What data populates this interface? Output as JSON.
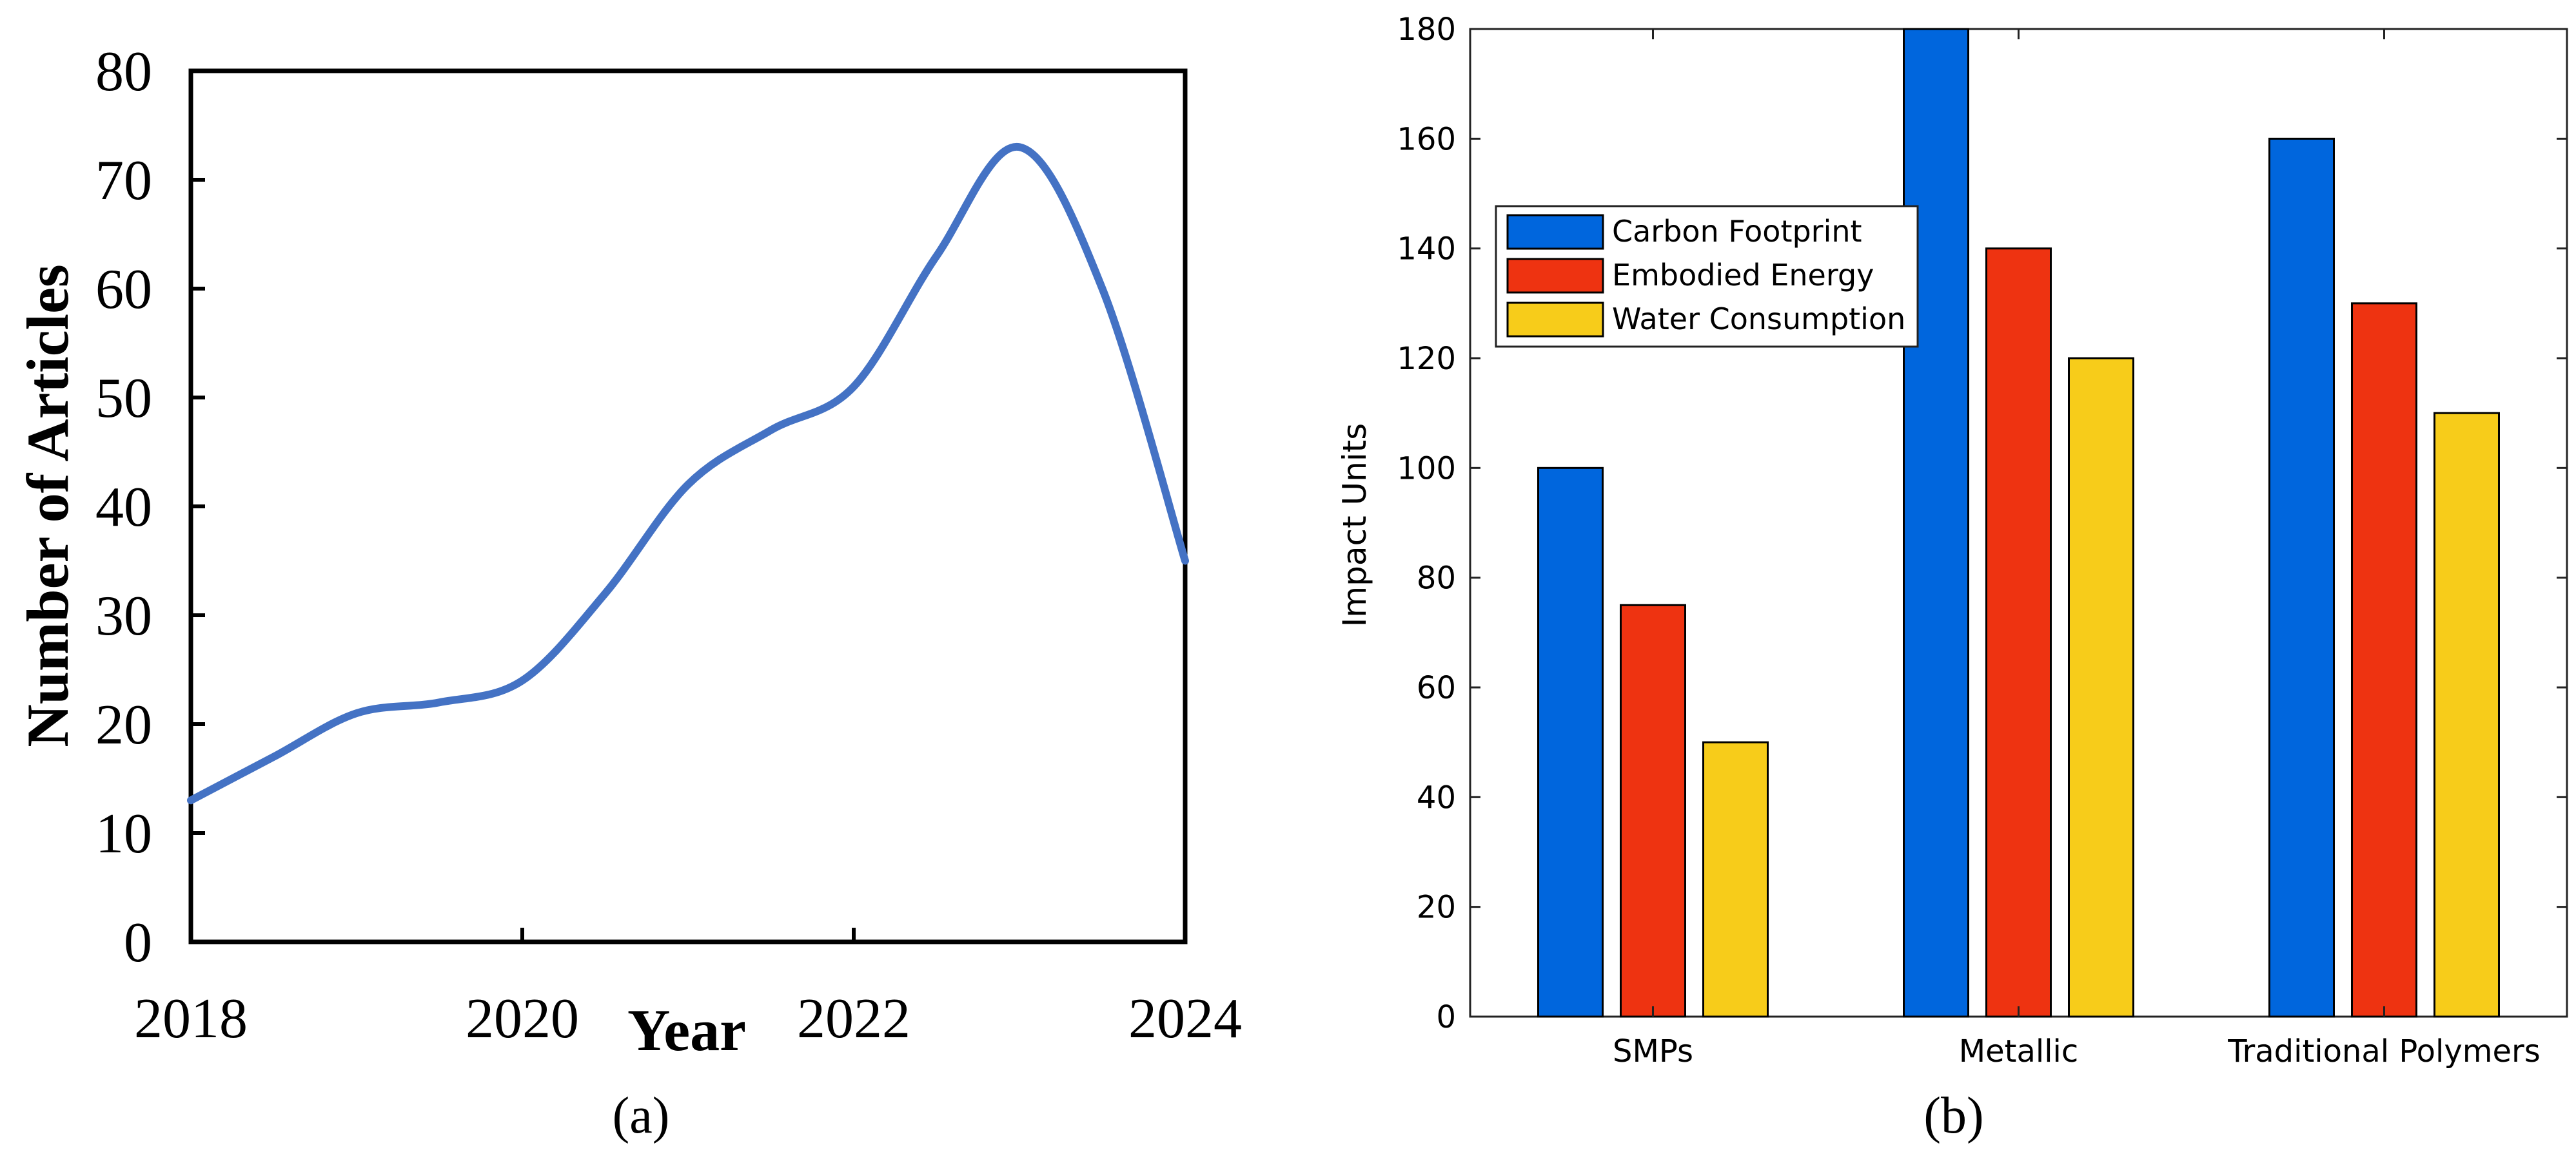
{
  "chart_data": [
    {
      "panel_label": "(a)",
      "type": "line",
      "xlabel": "Year",
      "ylabel": "Number of Articles",
      "xlim": [
        2018,
        2024
      ],
      "ylim": [
        0,
        80
      ],
      "x_ticks": [
        "2018",
        "2020",
        "2022",
        "2024"
      ],
      "y_ticks": [
        "0",
        "10",
        "20",
        "30",
        "40",
        "50",
        "60",
        "70",
        "80"
      ],
      "smooth": true,
      "line_color": "#4472c4",
      "x": [
        2018,
        2018.5,
        2019,
        2019.5,
        2020,
        2020.5,
        2021,
        2021.5,
        2022,
        2022.5,
        2023,
        2023.5,
        2024
      ],
      "y": [
        13,
        17,
        21,
        22,
        24,
        32,
        42,
        47,
        51,
        63,
        73,
        60,
        35
      ]
    },
    {
      "panel_label": "(b)",
      "type": "bar",
      "xlabel": "",
      "ylabel": "Impact Units",
      "ylim": [
        0,
        180
      ],
      "y_ticks": [
        "0",
        "20",
        "40",
        "60",
        "80",
        "100",
        "120",
        "140",
        "160",
        "180"
      ],
      "categories": [
        "SMPs",
        "Metallic",
        "Traditional Polymers"
      ],
      "legend_position": "upper-left",
      "grid": false,
      "series": [
        {
          "name": "Carbon Footprint",
          "color": "#0066dd",
          "values": [
            100,
            180,
            160
          ]
        },
        {
          "name": "Embodied Energy",
          "color": "#ee3311",
          "values": [
            75,
            140,
            130
          ]
        },
        {
          "name": "Water Consumption",
          "color": "#f7cc1a",
          "values": [
            50,
            120,
            110
          ]
        }
      ]
    }
  ]
}
